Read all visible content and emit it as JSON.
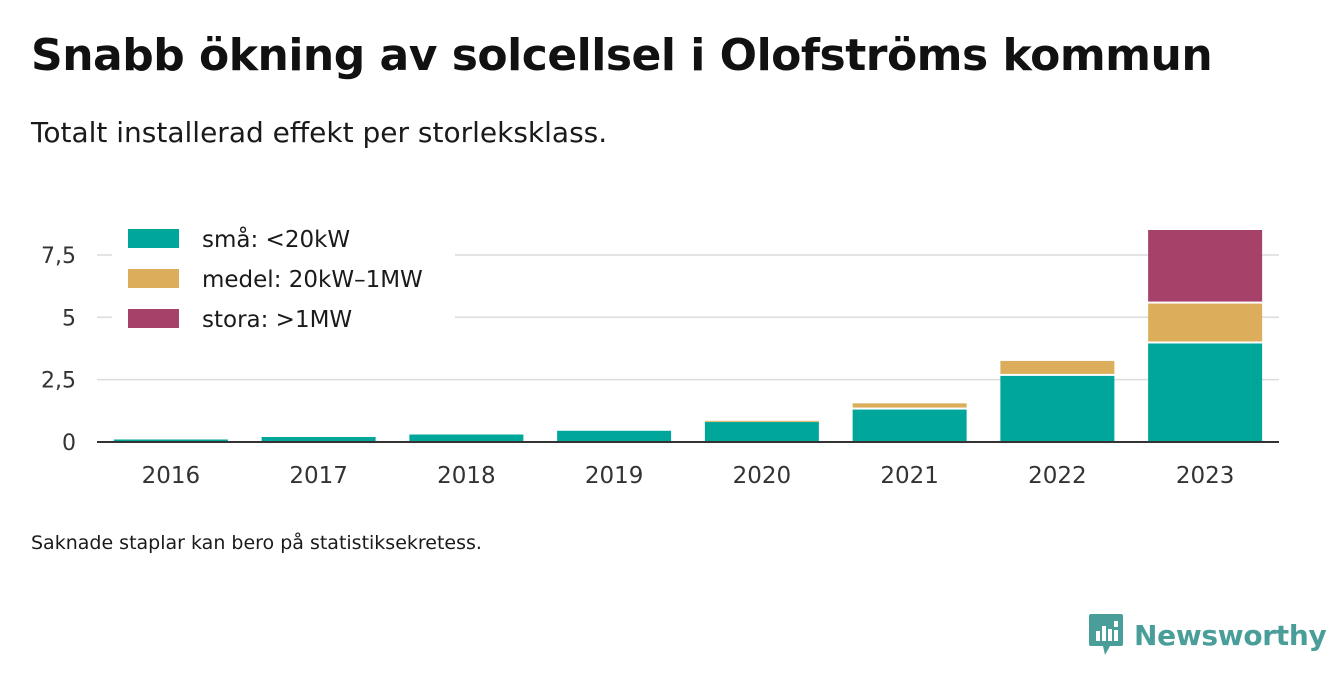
{
  "title": "Snabb ökning av solcellsel i Olofströms kommun",
  "subtitle": "Totalt installerad effekt per storleksklass.",
  "note": "Saknade staplar kan bero på statistiksekretess.",
  "brand": {
    "name": "Newsworthy",
    "icon": "newsworthy-logo-icon",
    "color": "#4a9e99"
  },
  "chart_data": {
    "type": "bar",
    "stacked": true,
    "categories": [
      "2016",
      "2017",
      "2018",
      "2019",
      "2020",
      "2021",
      "2022",
      "2023"
    ],
    "series": [
      {
        "name": "små: <20kW",
        "color": "#00a69a",
        "values": [
          0.1,
          0.2,
          0.3,
          0.45,
          0.8,
          1.3,
          2.65,
          3.95
        ]
      },
      {
        "name": "medel: 20kW–1MW",
        "color": "#dcae5c",
        "values": [
          0,
          0,
          0,
          0,
          0.05,
          0.25,
          0.6,
          1.6
        ]
      },
      {
        "name": "stora: >1MW",
        "color": "#a6426a",
        "values": [
          0,
          0,
          0,
          0,
          0,
          0,
          0,
          2.95
        ]
      }
    ],
    "ylim": [
      0,
      8.5
    ],
    "yticks": [
      0,
      2.5,
      5,
      7.5
    ],
    "ytick_labels": [
      "0",
      "2,5",
      "5",
      "7,5"
    ],
    "xlabel": "",
    "ylabel": "",
    "grid": true,
    "legend_position": "top-left"
  }
}
